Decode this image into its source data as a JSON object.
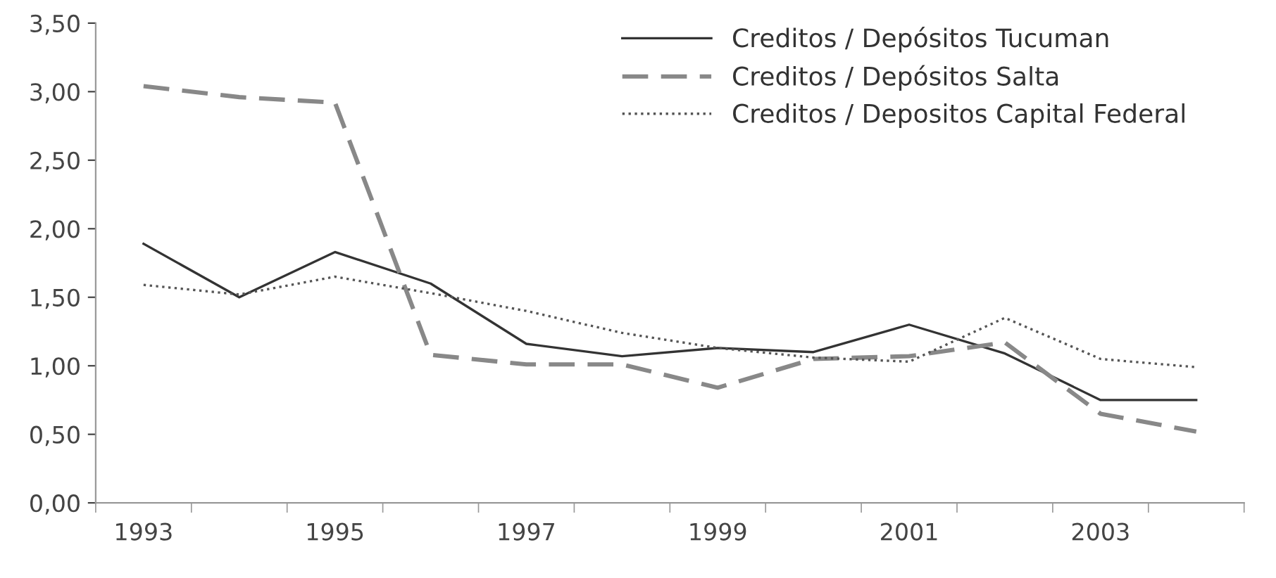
{
  "chart_data": {
    "type": "line",
    "categories": [
      "1993",
      null,
      "1995",
      null,
      "1997",
      null,
      "1999",
      null,
      "2001",
      null,
      "2003",
      null
    ],
    "series": [
      {
        "name": "Creditos / Depósitos Tucuman",
        "color": "#333333",
        "line_style": "solid",
        "values": [
          1.89,
          1.5,
          1.83,
          1.6,
          1.16,
          1.07,
          1.13,
          1.1,
          1.3,
          1.09,
          0.75,
          0.75
        ]
      },
      {
        "name": "Creditos / Depósitos Salta",
        "color": "#888888",
        "line_style": "dashed",
        "values": [
          3.04,
          2.96,
          2.92,
          1.08,
          1.01,
          1.01,
          0.84,
          1.05,
          1.07,
          1.17,
          0.65,
          0.52
        ]
      },
      {
        "name": "Creditos / Depositos Capital Federal",
        "color": "#555555",
        "line_style": "dotted",
        "values": [
          1.59,
          1.52,
          1.65,
          1.53,
          1.4,
          1.24,
          1.13,
          1.06,
          1.03,
          1.35,
          1.05,
          0.99
        ]
      }
    ],
    "ylim": [
      0,
      3.5
    ],
    "yticks": [
      {
        "value": 0,
        "label": "0,00"
      },
      {
        "value": 0.5,
        "label": "0,50"
      },
      {
        "value": 1,
        "label": "1,00"
      },
      {
        "value": 1.5,
        "label": "1,50"
      },
      {
        "value": 2,
        "label": "2,00"
      },
      {
        "value": 2.5,
        "label": "2,50"
      },
      {
        "value": 3,
        "label": "3,00"
      },
      {
        "value": 3.5,
        "label": "3,50"
      }
    ],
    "grid": false,
    "legend": "top right",
    "marker": "none"
  }
}
